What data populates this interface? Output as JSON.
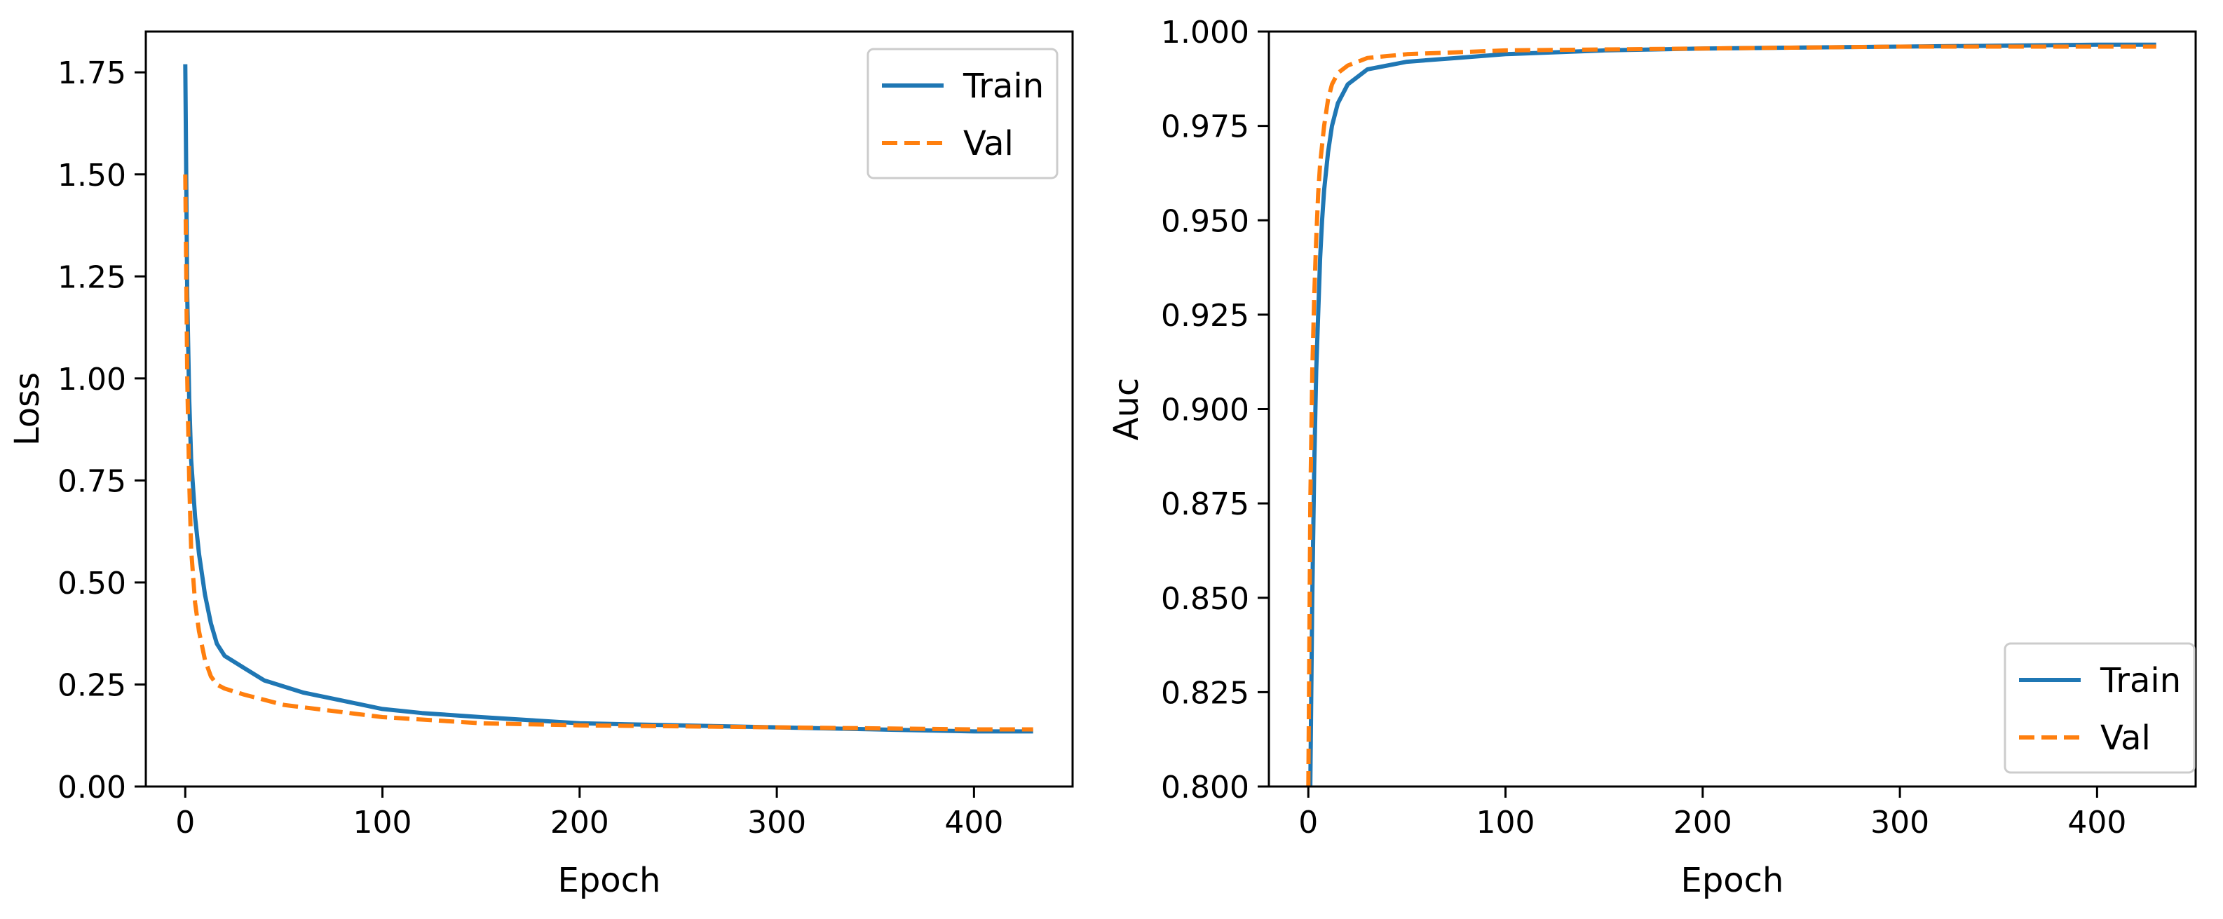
{
  "chart_data": [
    {
      "type": "line",
      "id": "loss",
      "title": "",
      "xlabel": "Epoch",
      "ylabel": "Loss",
      "xlim": [
        -20,
        450
      ],
      "ylim": [
        0.0,
        1.85
      ],
      "xticks": [
        0,
        100,
        200,
        300,
        400
      ],
      "xtick_labels": [
        "0",
        "100",
        "200",
        "300",
        "400"
      ],
      "yticks": [
        0.0,
        0.25,
        0.5,
        0.75,
        1.0,
        1.25,
        1.5,
        1.75
      ],
      "ytick_labels": [
        "0.00",
        "0.25",
        "0.50",
        "0.75",
        "1.00",
        "1.25",
        "1.50",
        "1.75"
      ],
      "grid": false,
      "legend": {
        "placement": "top-right",
        "entries": [
          "Train",
          "Val"
        ]
      },
      "series": [
        {
          "name": "Train",
          "color": "#1f77b4",
          "style": "solid",
          "x": [
            0,
            1,
            2,
            3,
            5,
            7,
            10,
            13,
            16,
            20,
            25,
            30,
            40,
            50,
            60,
            80,
            100,
            120,
            150,
            200,
            250,
            300,
            350,
            400,
            430
          ],
          "y": [
            1.77,
            1.2,
            0.95,
            0.8,
            0.66,
            0.57,
            0.47,
            0.4,
            0.35,
            0.32,
            0.305,
            0.29,
            0.26,
            0.245,
            0.23,
            0.21,
            0.19,
            0.18,
            0.17,
            0.155,
            0.15,
            0.145,
            0.14,
            0.135,
            0.135
          ]
        },
        {
          "name": "Val",
          "color": "#ff7f0e",
          "style": "dashed",
          "x": [
            0,
            1,
            2,
            3,
            5,
            7,
            10,
            13,
            16,
            20,
            30,
            50,
            75,
            100,
            150,
            200,
            300,
            400,
            430
          ],
          "y": [
            1.5,
            1.0,
            0.75,
            0.58,
            0.45,
            0.38,
            0.31,
            0.27,
            0.25,
            0.24,
            0.225,
            0.2,
            0.185,
            0.17,
            0.155,
            0.15,
            0.145,
            0.14,
            0.14
          ]
        }
      ]
    },
    {
      "type": "line",
      "id": "auc",
      "title": "",
      "xlabel": "Epoch",
      "ylabel": "Auc",
      "xlim": [
        -20,
        450
      ],
      "ylim": [
        0.8,
        1.0
      ],
      "xticks": [
        0,
        100,
        200,
        300,
        400
      ],
      "xtick_labels": [
        "0",
        "100",
        "200",
        "300",
        "400"
      ],
      "yticks": [
        0.8,
        0.825,
        0.85,
        0.875,
        0.9,
        0.925,
        0.95,
        0.975,
        1.0
      ],
      "ytick_labels": [
        "0.800",
        "0.825",
        "0.850",
        "0.875",
        "0.900",
        "0.925",
        "0.950",
        "0.975",
        "1.000"
      ],
      "grid": false,
      "legend": {
        "placement": "bottom-right",
        "entries": [
          "Train",
          "Val"
        ]
      },
      "series": [
        {
          "name": "Train",
          "color": "#1f77b4",
          "style": "solid",
          "x": [
            1,
            2,
            3,
            4,
            5,
            6,
            7,
            8,
            10,
            12,
            15,
            20,
            25,
            30,
            40,
            50,
            75,
            100,
            150,
            200,
            300,
            400,
            430
          ],
          "y": [
            0.8,
            0.85,
            0.885,
            0.91,
            0.925,
            0.94,
            0.95,
            0.958,
            0.968,
            0.975,
            0.981,
            0.986,
            0.988,
            0.99,
            0.991,
            0.992,
            0.993,
            0.994,
            0.995,
            0.9955,
            0.996,
            0.9965,
            0.9965
          ]
        },
        {
          "name": "Val",
          "color": "#ff7f0e",
          "style": "dashed",
          "x": [
            0,
            1,
            2,
            3,
            4,
            5,
            6,
            8,
            10,
            12,
            15,
            20,
            30,
            50,
            100,
            200,
            300,
            400,
            430
          ],
          "y": [
            0.8,
            0.875,
            0.91,
            0.93,
            0.945,
            0.957,
            0.965,
            0.975,
            0.982,
            0.986,
            0.989,
            0.991,
            0.993,
            0.994,
            0.995,
            0.9955,
            0.996,
            0.996,
            0.996
          ]
        }
      ]
    }
  ]
}
